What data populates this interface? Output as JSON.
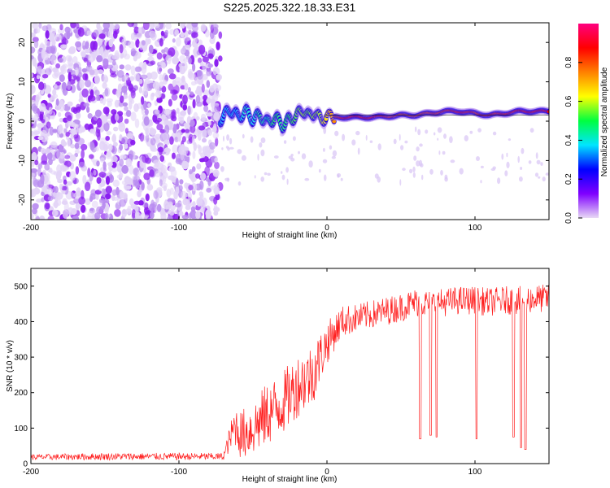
{
  "figure_title": "S225.2025.322.18.33.E31",
  "chart_data": [
    {
      "type": "heatmap",
      "title": "S225.2025.322.18.33.E31",
      "xlabel": "Height of straight line (km)",
      "ylabel": "Frequency (Hz)",
      "xlim": [
        -200,
        150
      ],
      "ylim": [
        -25,
        25
      ],
      "xticks": [
        -200,
        -100,
        0,
        100
      ],
      "xtick_labels": [
        "-200",
        "-100",
        "0",
        "100"
      ],
      "yticks": [
        -20,
        -10,
        0,
        10,
        20
      ],
      "ytick_labels": [
        "-20",
        "-10",
        "0",
        "10",
        "20"
      ],
      "colorbar": {
        "label": "Normalized spectral amplitude",
        "range": [
          0,
          1
        ],
        "ticks": [
          0.0,
          0.2,
          0.4,
          0.6,
          0.8
        ],
        "tick_labels": [
          "0.0",
          "0.2",
          "0.4",
          "0.6",
          "0.8"
        ],
        "colormap": [
          "#e8d9f5",
          "#7f00ff",
          "#0000ff",
          "#00e5ff",
          "#00ff40",
          "#ffff00",
          "#ff8000",
          "#ff0000",
          "#ff007f"
        ]
      },
      "noise_region": {
        "x_range": [
          -200,
          -72
        ],
        "y_range": [
          -25,
          25
        ],
        "amplitude": "0.05-0.2"
      },
      "signal_track": {
        "x": [
          -72,
          -65,
          -60,
          -55,
          -50,
          -45,
          -40,
          -35,
          -30,
          -25,
          -20,
          -16,
          -12,
          -8,
          -4,
          0,
          5,
          10,
          20,
          30,
          40,
          50,
          60,
          70,
          80,
          90,
          100,
          110,
          120,
          130,
          140,
          150
        ],
        "freq": [
          0.5,
          3.0,
          1.0,
          2.5,
          0.5,
          1.5,
          -0.5,
          1.0,
          -1.0,
          0.5,
          1.5,
          3.0,
          1.0,
          2.5,
          0.0,
          1.5,
          1.0,
          1.0,
          1.0,
          1.0,
          1.2,
          1.5,
          1.5,
          2.0,
          2.5,
          2.5,
          2.0,
          1.5,
          2.0,
          2.5,
          2.5,
          2.5
        ],
        "amplitude": [
          0.3,
          0.35,
          0.3,
          0.4,
          0.35,
          0.45,
          0.4,
          0.5,
          0.45,
          0.5,
          0.55,
          0.6,
          0.55,
          0.6,
          0.6,
          0.7,
          0.8,
          0.95,
          0.95,
          0.95,
          0.9,
          0.85,
          0.85,
          0.88,
          0.9,
          0.95,
          0.9,
          0.9,
          0.92,
          0.95,
          0.95,
          0.95
        ]
      }
    },
    {
      "type": "line",
      "xlabel": "Height of straight line (km)",
      "ylabel": "SNR (10 * v/v)",
      "xlim": [
        -200,
        150
      ],
      "ylim": [
        0,
        550
      ],
      "xticks": [
        -200,
        -100,
        0,
        100
      ],
      "xtick_labels": [
        "-200",
        "-100",
        "0",
        "100"
      ],
      "yticks": [
        0,
        100,
        200,
        300,
        400,
        500
      ],
      "ytick_labels": [
        "0",
        "100",
        "200",
        "300",
        "400",
        "500"
      ],
      "color": "#ff2020",
      "baseline": {
        "x": [
          -200,
          -150,
          -100,
          -70,
          -62,
          -58,
          -50,
          -40,
          -30,
          -20,
          -10,
          0,
          10,
          20,
          30,
          40,
          50,
          60,
          70,
          80,
          90,
          100,
          110,
          120,
          130,
          140,
          150
        ],
        "y": [
          18,
          20,
          20,
          20,
          110,
          80,
          100,
          140,
          170,
          220,
          250,
          340,
          400,
          410,
          420,
          430,
          440,
          455,
          450,
          455,
          460,
          460,
          455,
          460,
          460,
          465,
          465
        ],
        "spread": [
          8,
          10,
          10,
          10,
          60,
          70,
          80,
          90,
          90,
          90,
          90,
          60,
          45,
          40,
          40,
          40,
          40,
          40,
          40,
          40,
          40,
          40,
          40,
          40,
          40,
          40,
          40
        ]
      },
      "dropouts": [
        {
          "x": 63,
          "y": 70
        },
        {
          "x": 70,
          "y": 80
        },
        {
          "x": 74,
          "y": 75
        },
        {
          "x": 101,
          "y": 70
        },
        {
          "x": 126,
          "y": 75
        },
        {
          "x": 131,
          "y": 45
        },
        {
          "x": 134,
          "y": 40
        }
      ]
    }
  ]
}
